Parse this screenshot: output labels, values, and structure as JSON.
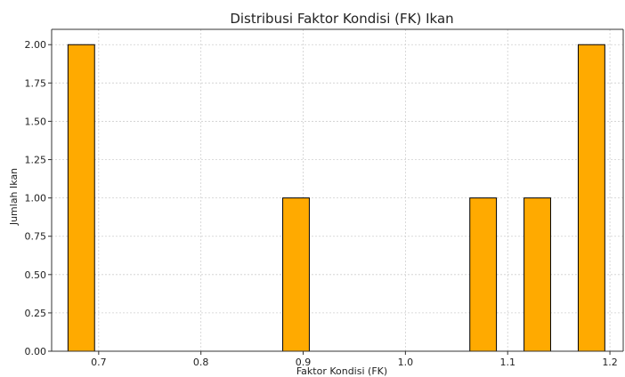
{
  "chart_data": {
    "type": "bar",
    "title": "Distribusi Faktor Kondisi (FK) Ikan",
    "xlabel": "Faktor Kondisi (FK)",
    "ylabel": "Jumlah Ikan",
    "xlim": [
      0.654,
      1.213
    ],
    "ylim": [
      0,
      2.1
    ],
    "xticks": [
      0.7,
      0.8,
      0.9,
      1.0,
      1.1,
      1.2
    ],
    "xtick_labels": [
      "0.7",
      "0.8",
      "0.9",
      "1.0",
      "1.1",
      "1.2"
    ],
    "yticks": [
      0,
      0.25,
      0.5,
      0.75,
      1.0,
      1.25,
      1.5,
      1.75,
      2.0
    ],
    "ytick_labels": [
      "0.00",
      "0.25",
      "0.50",
      "0.75",
      "1.00",
      "1.25",
      "1.50",
      "1.75",
      "2.00"
    ],
    "bins": [
      {
        "x0": 0.67,
        "x1": 0.696,
        "count": 2
      },
      {
        "x0": 0.88,
        "x1": 0.906,
        "count": 1
      },
      {
        "x0": 1.063,
        "x1": 1.089,
        "count": 1
      },
      {
        "x0": 1.116,
        "x1": 1.142,
        "count": 1
      },
      {
        "x0": 1.169,
        "x1": 1.195,
        "count": 2
      }
    ],
    "grid": true,
    "bar_color": "#FFAA00",
    "edge_color": "#000000"
  }
}
